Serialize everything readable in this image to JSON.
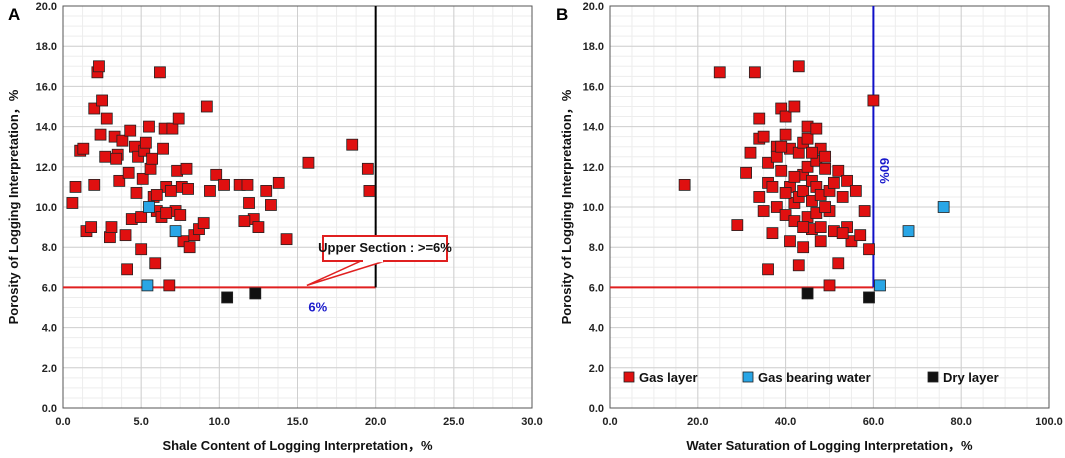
{
  "chart_data": [
    {
      "type": "scatter",
      "panel_label": "A",
      "xlabel": "Shale Content of Logging Interpretation，%",
      "ylabel": "Porosity of Logging Interpretation，%",
      "xlim": [
        0,
        30
      ],
      "ylim": [
        0,
        20
      ],
      "x_ticks": [
        "0.0",
        "5.0",
        "10.0",
        "15.0",
        "20.0",
        "25.0",
        "30.0"
      ],
      "y_ticks": [
        "0.0",
        "2.0",
        "4.0",
        "6.0",
        "8.0",
        "10.0",
        "12.0",
        "14.0",
        "16.0",
        "18.0",
        "20.0"
      ],
      "grid": true,
      "reference_lines": {
        "h_y": 6,
        "h_x_end": 20,
        "v_x": 20
      },
      "annotations": {
        "threshold_label": "6%",
        "callout": "Upper Section : >=6%"
      },
      "series": [
        {
          "name": "Gas layer",
          "color": "#e01010",
          "points": [
            [
              0.6,
              10.2
            ],
            [
              0.8,
              11.0
            ],
            [
              1.1,
              12.8
            ],
            [
              1.3,
              12.9
            ],
            [
              1.5,
              8.8
            ],
            [
              1.8,
              9.0
            ],
            [
              2.0,
              11.1
            ],
            [
              2.0,
              14.9
            ],
            [
              2.2,
              16.7
            ],
            [
              2.3,
              17.0
            ],
            [
              2.4,
              13.6
            ],
            [
              2.5,
              15.3
            ],
            [
              2.7,
              12.5
            ],
            [
              2.8,
              14.4
            ],
            [
              3.0,
              8.5
            ],
            [
              3.1,
              9.0
            ],
            [
              3.3,
              13.5
            ],
            [
              3.5,
              12.6
            ],
            [
              3.6,
              11.3
            ],
            [
              3.8,
              13.3
            ],
            [
              4.0,
              8.6
            ],
            [
              4.1,
              6.9
            ],
            [
              4.2,
              11.7
            ],
            [
              4.3,
              13.8
            ],
            [
              4.4,
              9.4
            ],
            [
              4.6,
              13.0
            ],
            [
              4.8,
              12.5
            ],
            [
              5.0,
              7.9
            ],
            [
              5.1,
              11.4
            ],
            [
              5.2,
              12.8
            ],
            [
              5.3,
              13.2
            ],
            [
              5.5,
              14.0
            ],
            [
              5.6,
              11.9
            ],
            [
              5.7,
              12.4
            ],
            [
              5.8,
              10.5
            ],
            [
              5.9,
              7.2
            ],
            [
              6.0,
              9.8
            ],
            [
              6.2,
              16.7
            ],
            [
              6.3,
              9.5
            ],
            [
              6.4,
              12.9
            ],
            [
              6.5,
              13.9
            ],
            [
              6.6,
              11.0
            ],
            [
              6.8,
              6.1
            ],
            [
              6.9,
              10.8
            ],
            [
              7.0,
              13.9
            ],
            [
              7.2,
              9.8
            ],
            [
              7.3,
              11.8
            ],
            [
              7.4,
              14.4
            ],
            [
              7.5,
              9.6
            ],
            [
              7.7,
              8.3
            ],
            [
              7.9,
              11.9
            ],
            [
              8.1,
              8.0
            ],
            [
              8.4,
              8.6
            ],
            [
              8.7,
              8.9
            ],
            [
              9.0,
              9.2
            ],
            [
              9.2,
              15.0
            ],
            [
              9.4,
              10.8
            ],
            [
              9.8,
              11.6
            ],
            [
              10.3,
              11.1
            ],
            [
              11.3,
              11.1
            ],
            [
              11.8,
              11.1
            ],
            [
              11.9,
              10.2
            ],
            [
              12.2,
              9.4
            ],
            [
              12.5,
              9.0
            ],
            [
              13.0,
              10.8
            ],
            [
              13.3,
              10.1
            ],
            [
              13.8,
              11.2
            ],
            [
              14.3,
              8.4
            ],
            [
              15.7,
              12.2
            ],
            [
              18.5,
              13.1
            ],
            [
              19.5,
              11.9
            ],
            [
              19.6,
              10.8
            ],
            [
              7.6,
              11.0
            ],
            [
              6.0,
              10.6
            ],
            [
              3.4,
              12.4
            ],
            [
              5.0,
              9.5
            ],
            [
              6.6,
              9.7
            ],
            [
              8.0,
              10.9
            ],
            [
              11.6,
              9.3
            ],
            [
              4.7,
              10.7
            ]
          ]
        },
        {
          "name": "Gas bearing water",
          "color": "#29a6e6",
          "points": [
            [
              5.5,
              10.0
            ],
            [
              7.2,
              8.8
            ],
            [
              5.4,
              6.1
            ]
          ]
        },
        {
          "name": "Dry layer",
          "color": "#111111",
          "points": [
            [
              10.5,
              5.5
            ],
            [
              12.3,
              5.7
            ]
          ]
        }
      ]
    },
    {
      "type": "scatter",
      "panel_label": "B",
      "xlabel": "Water Saturation of Logging Interpretation，%",
      "ylabel": "Porosity of Logging Interpretation，%",
      "xlim": [
        0,
        100
      ],
      "ylim": [
        0,
        20
      ],
      "x_ticks": [
        "0.0",
        "20.0",
        "40.0",
        "60.0",
        "80.0",
        "100.0"
      ],
      "y_ticks": [
        "0.0",
        "2.0",
        "4.0",
        "6.0",
        "8.0",
        "10.0",
        "12.0",
        "14.0",
        "16.0",
        "18.0",
        "20.0"
      ],
      "grid": true,
      "reference_lines": {
        "h_y": 6,
        "h_x_end": 60,
        "v_x": 60
      },
      "annotations": {
        "threshold_label": "60%"
      },
      "legend": {
        "position": "bottom",
        "entries": [
          "Gas layer",
          "Gas bearing water",
          "Dry layer"
        ]
      },
      "series": [
        {
          "name": "Gas layer",
          "color": "#e01010",
          "points": [
            [
              17,
              11.1
            ],
            [
              25,
              16.7
            ],
            [
              29,
              9.1
            ],
            [
              31,
              11.7
            ],
            [
              32,
              12.7
            ],
            [
              33,
              16.7
            ],
            [
              34,
              13.4
            ],
            [
              34,
              10.5
            ],
            [
              34,
              14.4
            ],
            [
              35,
              13.5
            ],
            [
              35,
              9.8
            ],
            [
              36,
              11.2
            ],
            [
              36,
              12.2
            ],
            [
              36,
              6.9
            ],
            [
              37,
              11.0
            ],
            [
              37,
              8.7
            ],
            [
              38,
              13.0
            ],
            [
              38,
              10.0
            ],
            [
              38,
              12.5
            ],
            [
              39,
              14.9
            ],
            [
              39,
              11.8
            ],
            [
              40,
              13.6
            ],
            [
              40,
              9.6
            ],
            [
              40,
              14.5
            ],
            [
              41,
              8.3
            ],
            [
              41,
              12.9
            ],
            [
              41,
              11.0
            ],
            [
              42,
              15.0
            ],
            [
              42,
              10.2
            ],
            [
              42,
              9.3
            ],
            [
              43,
              7.1
            ],
            [
              43,
              17.0
            ],
            [
              43,
              12.7
            ],
            [
              43,
              10.5
            ],
            [
              44,
              8.0
            ],
            [
              44,
              11.6
            ],
            [
              44,
              13.2
            ],
            [
              44,
              10.8
            ],
            [
              45,
              14.0
            ],
            [
              45,
              12.0
            ],
            [
              45,
              9.5
            ],
            [
              45,
              13.4
            ],
            [
              46,
              11.3
            ],
            [
              46,
              10.3
            ],
            [
              46,
              8.9
            ],
            [
              47,
              13.9
            ],
            [
              47,
              12.3
            ],
            [
              47,
              9.7
            ],
            [
              47,
              11.0
            ],
            [
              48,
              12.9
            ],
            [
              48,
              10.6
            ],
            [
              48,
              8.3
            ],
            [
              48,
              9.0
            ],
            [
              49,
              11.9
            ],
            [
              49,
              12.5
            ],
            [
              50,
              10.8
            ],
            [
              50,
              9.8
            ],
            [
              50,
              6.1
            ],
            [
              51,
              11.2
            ],
            [
              51,
              8.8
            ],
            [
              52,
              11.8
            ],
            [
              52,
              7.2
            ],
            [
              53,
              10.5
            ],
            [
              54,
              11.3
            ],
            [
              54,
              9.0
            ],
            [
              55,
              8.3
            ],
            [
              56,
              10.8
            ],
            [
              57,
              8.6
            ],
            [
              58,
              9.8
            ],
            [
              59,
              7.9
            ],
            [
              60,
              15.3
            ],
            [
              39,
              13.0
            ],
            [
              42,
              11.5
            ],
            [
              46,
              12.7
            ],
            [
              49,
              10.0
            ],
            [
              53,
              8.7
            ],
            [
              40,
              10.7
            ],
            [
              44,
              9.0
            ]
          ]
        },
        {
          "name": "Gas bearing water",
          "color": "#29a6e6",
          "points": [
            [
              76,
              10.0
            ],
            [
              68,
              8.8
            ],
            [
              61.5,
              6.1
            ]
          ]
        },
        {
          "name": "Dry layer",
          "color": "#111111",
          "points": [
            [
              45,
              5.7
            ],
            [
              59,
              5.5
            ]
          ]
        }
      ]
    }
  ]
}
